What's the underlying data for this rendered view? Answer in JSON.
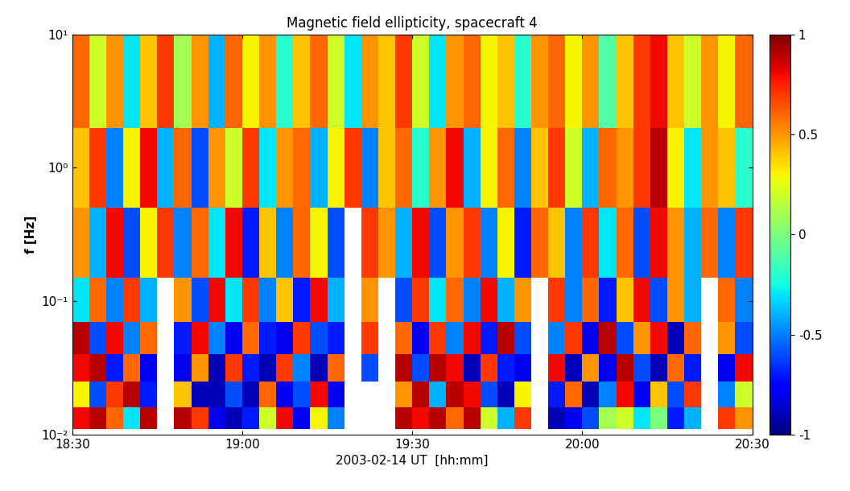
{
  "chart_data": {
    "type": "heatmap",
    "title": "Magnetic field ellipticity, spacecraft 4",
    "xlabel": "2003-02-14 UT  [hh:mm]",
    "ylabel": "f [Hz]",
    "log": "y",
    "xlim": [
      18.5,
      20.5
    ],
    "ylim": [
      0.01,
      10
    ],
    "xticks": [
      {
        "value": 18.5,
        "label": "18:30"
      },
      {
        "value": 19.0,
        "label": "19:00"
      },
      {
        "value": 19.5,
        "label": "19:30"
      },
      {
        "value": 20.0,
        "label": "20:00"
      },
      {
        "value": 20.5,
        "label": "20:30"
      }
    ],
    "yticks": [
      {
        "value": 0.01,
        "label": "10⁻²"
      },
      {
        "value": 0.1,
        "label": "10⁻¹"
      },
      {
        "value": 1,
        "label": "10⁰"
      },
      {
        "value": 10,
        "label": "10¹"
      }
    ],
    "x_edges": [
      18.5,
      18.55,
      18.6,
      18.65,
      18.7,
      18.75,
      18.8,
      18.85,
      18.9,
      18.95,
      19.0,
      19.05,
      19.1,
      19.15,
      19.2,
      19.25,
      19.3,
      19.35,
      19.4,
      19.45,
      19.5,
      19.55,
      19.6,
      19.65,
      19.7,
      19.75,
      19.8,
      19.85,
      19.9,
      19.95,
      20.0,
      20.05,
      20.1,
      20.15,
      20.2,
      20.25,
      20.3,
      20.35,
      20.4,
      20.45,
      20.5
    ],
    "y_edges": [
      0.011,
      0.016,
      0.025,
      0.04,
      0.07,
      0.15,
      0.5,
      2,
      10
    ],
    "cells": [
      [
        0.8,
        0.9,
        0.6,
        -0.3,
        0.9,
        null,
        0.9,
        0.7,
        -0.8,
        -0.9,
        -0.7,
        0.2,
        0.8,
        -0.8,
        0.3,
        -0.5,
        null,
        null,
        null,
        0.9,
        0.8,
        0.9,
        0.6,
        0.9,
        0.2,
        -0.4,
        0.7,
        null,
        -0.9,
        -0.8,
        -0.6,
        0.1,
        0.2,
        -0.3,
        0.0,
        -0.7,
        -0.4,
        null,
        0.7,
        0.5
      ],
      [
        0.3,
        -0.6,
        0.7,
        0.9,
        -0.7,
        null,
        0.4,
        -0.9,
        -0.9,
        -0.6,
        -0.9,
        0.6,
        -0.8,
        -0.6,
        0.8,
        -0.8,
        null,
        null,
        null,
        0.5,
        0.9,
        -0.4,
        0.9,
        0.8,
        -0.6,
        -0.9,
        0.3,
        null,
        -0.7,
        0.6,
        -0.9,
        -0.5,
        0.8,
        -0.8,
        0.4,
        -0.6,
        0.7,
        null,
        -0.5,
        0.2
      ],
      [
        0.8,
        0.9,
        -0.7,
        0.6,
        -0.8,
        null,
        -0.8,
        0.5,
        -0.9,
        0.7,
        -0.7,
        -0.9,
        0.7,
        -0.5,
        -0.9,
        0.6,
        null,
        -0.6,
        null,
        0.9,
        -0.6,
        0.9,
        0.8,
        -0.9,
        0.7,
        -0.7,
        -0.8,
        null,
        0.8,
        -0.9,
        0.5,
        -0.8,
        0.9,
        -0.6,
        -0.9,
        0.6,
        -0.7,
        null,
        -0.8,
        0.8
      ],
      [
        0.9,
        -0.6,
        0.8,
        -0.5,
        0.6,
        null,
        -0.7,
        0.8,
        -0.5,
        -0.8,
        0.6,
        -0.7,
        -0.8,
        0.7,
        -0.6,
        -0.7,
        null,
        0.7,
        null,
        0.6,
        -0.8,
        0.7,
        -0.5,
        0.8,
        -0.7,
        0.9,
        -0.6,
        null,
        -0.5,
        0.7,
        -0.8,
        0.9,
        -0.6,
        0.5,
        0.8,
        -0.9,
        0.6,
        null,
        0.5,
        -0.6
      ],
      [
        -0.3,
        0.6,
        -0.5,
        0.7,
        -0.4,
        null,
        0.5,
        -0.6,
        0.8,
        -0.3,
        0.7,
        -0.5,
        0.4,
        -0.7,
        0.8,
        -0.4,
        null,
        0.5,
        null,
        -0.6,
        0.7,
        -0.3,
        0.6,
        -0.5,
        0.8,
        -0.4,
        0.5,
        null,
        0.7,
        -0.5,
        0.6,
        -0.7,
        0.4,
        0.8,
        -0.6,
        0.5,
        -0.4,
        null,
        0.6,
        -0.5
      ],
      [
        0.5,
        -0.4,
        0.8,
        -0.6,
        0.3,
        0.7,
        -0.5,
        0.6,
        -0.3,
        0.8,
        -0.7,
        0.4,
        -0.5,
        0.6,
        0.3,
        -0.6,
        null,
        0.7,
        0.5,
        -0.4,
        0.8,
        -0.6,
        0.5,
        0.7,
        -0.5,
        0.3,
        -0.7,
        0.6,
        0.4,
        -0.5,
        0.7,
        -0.3,
        0.6,
        -0.6,
        0.8,
        0.5,
        -0.4,
        0.6,
        -0.5,
        0.7
      ],
      [
        0.4,
        0.7,
        -0.5,
        0.3,
        0.8,
        -0.4,
        0.6,
        -0.6,
        0.5,
        0.2,
        0.7,
        -0.3,
        0.5,
        0.6,
        -0.4,
        0.3,
        0.7,
        -0.5,
        0.4,
        0.6,
        -0.2,
        0.5,
        0.8,
        -0.4,
        0.3,
        0.6,
        -0.5,
        0.4,
        0.7,
        0.2,
        -0.4,
        0.6,
        0.5,
        0.7,
        0.9,
        0.3,
        -0.3,
        0.5,
        0.4,
        -0.2
      ],
      [
        0.6,
        0.2,
        0.5,
        -0.3,
        0.4,
        0.7,
        0.1,
        0.5,
        -0.4,
        0.6,
        0.3,
        0.5,
        -0.2,
        0.4,
        0.6,
        0.2,
        -0.3,
        0.5,
        0.4,
        0.7,
        0.2,
        -0.3,
        0.5,
        0.6,
        0.3,
        0.4,
        -0.2,
        0.5,
        0.6,
        0.3,
        0.5,
        -0.1,
        0.4,
        0.7,
        0.8,
        0.4,
        0.2,
        0.5,
        0.3,
        0.6
      ]
    ],
    "colorbar_range": [
      -1,
      1
    ],
    "colorbar_ticks": [
      -1,
      -0.5,
      0,
      0.5,
      1
    ]
  }
}
